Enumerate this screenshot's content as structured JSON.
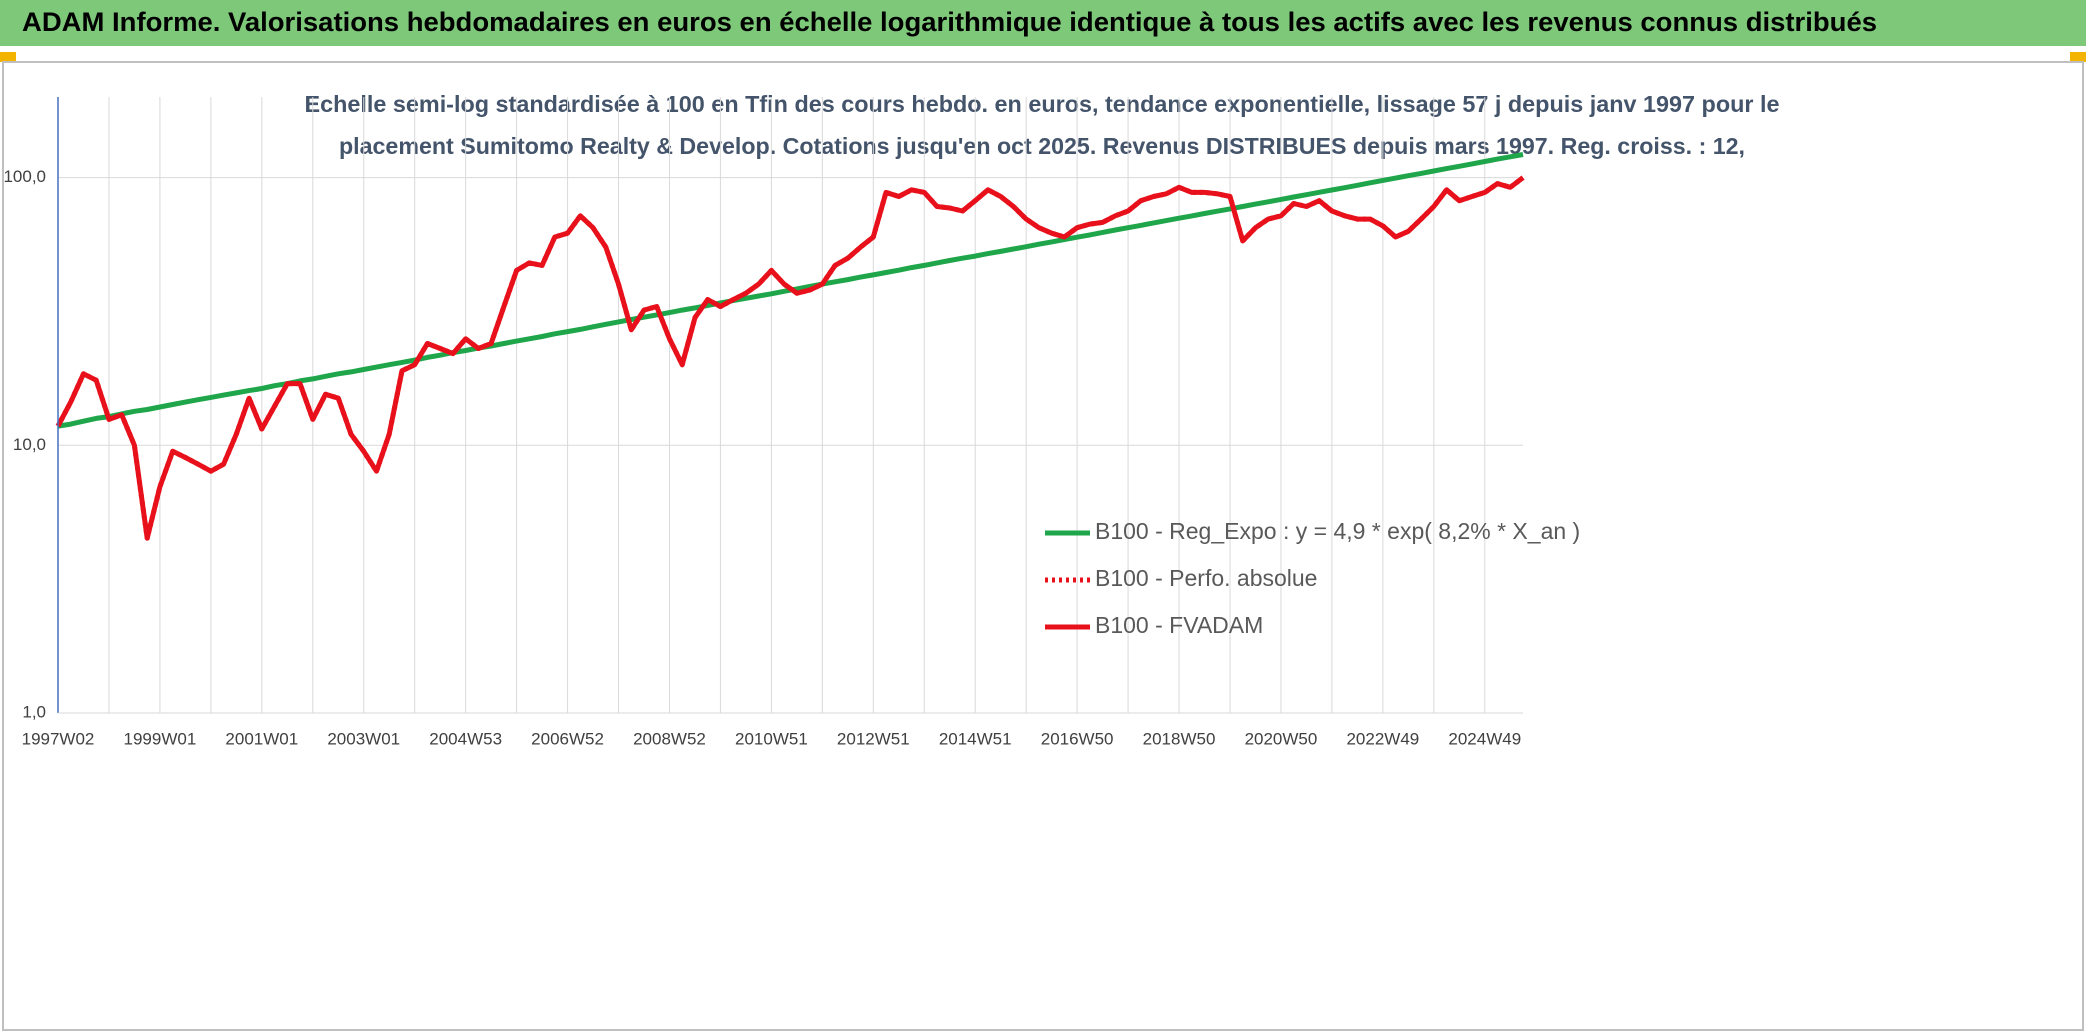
{
  "chart_data": {
    "type": "line",
    "title": "ADAM Informe. Valorisations hebdomadaires en euros en échelle logarithmique identique à tous les actifs avec les revenus connus distribués",
    "subtitle": [
      "Echelle semi-log standardisée à 100 en Tfin des cours hebdo. en euros, tendance exponentielle, lissage 57 j depuis janv 1997 pour le",
      "placement Sumitomo Realty & Develop. Cotations jusqu'en oct 2025. Revenus DISTRIBUES depuis mars 1997. Reg. croiss. : 12,"
    ],
    "categories": [
      "1997W02",
      null,
      null,
      null,
      null,
      null,
      null,
      null,
      "1999W01",
      null,
      null,
      null,
      null,
      null,
      null,
      null,
      "2001W01",
      null,
      null,
      null,
      null,
      null,
      null,
      null,
      "2003W01",
      null,
      null,
      null,
      null,
      null,
      null,
      null,
      "2004W53",
      null,
      null,
      null,
      null,
      null,
      null,
      null,
      "2006W52",
      null,
      null,
      null,
      null,
      null,
      null,
      null,
      "2008W52",
      null,
      null,
      null,
      null,
      null,
      null,
      null,
      "2010W51",
      null,
      null,
      null,
      null,
      null,
      null,
      null,
      "2012W51",
      null,
      null,
      null,
      null,
      null,
      null,
      null,
      "2014W51",
      null,
      null,
      null,
      null,
      null,
      null,
      null,
      "2016W50",
      null,
      null,
      null,
      null,
      null,
      null,
      null,
      "2018W50",
      null,
      null,
      null,
      null,
      null,
      null,
      null,
      "2020W50",
      null,
      null,
      null,
      null,
      null,
      null,
      null,
      "2022W49",
      null,
      null,
      null,
      null,
      null,
      null,
      null,
      "2024W49",
      null,
      null,
      null
    ],
    "log_scale": true,
    "ylim": [
      1,
      200
    ],
    "yticks": [
      {
        "value": 1,
        "label": "1,0"
      },
      {
        "value": 10,
        "label": "10,0"
      },
      {
        "value": 100,
        "label": "100,0"
      }
    ],
    "grid": true,
    "legend_position": "right",
    "series": [
      {
        "name": "B100 - Reg_Expo : y = 4,9 * exp( 8,2% *  X_an )",
        "color": "#1fa64a",
        "style": "solid",
        "values": [
          11.8,
          12.0,
          12.3,
          12.6,
          12.8,
          13.1,
          13.4,
          13.6,
          13.9,
          14.2,
          14.5,
          14.8,
          15.1,
          15.4,
          15.7,
          16.0,
          16.3,
          16.7,
          17.0,
          17.4,
          17.7,
          18.1,
          18.5,
          18.8,
          19.2,
          19.6,
          20.0,
          20.4,
          20.8,
          21.3,
          21.7,
          22.2,
          22.6,
          23.1,
          23.5,
          24.0,
          24.5,
          25.0,
          25.5,
          26.1,
          26.6,
          27.1,
          27.7,
          28.3,
          28.9,
          29.5,
          30.1,
          30.7,
          31.3,
          32.0,
          32.6,
          33.3,
          34.0,
          34.7,
          35.4,
          36.1,
          36.8,
          37.6,
          38.4,
          39.2,
          40.0,
          40.8,
          41.6,
          42.5,
          43.3,
          44.2,
          45.1,
          46.1,
          47.0,
          48.0,
          49.0,
          50.0,
          50.9,
          52.0,
          53.0,
          54.1,
          55.2,
          56.4,
          57.5,
          58.7,
          59.9,
          61.1,
          62.4,
          63.7,
          65.0,
          66.3,
          67.7,
          69.1,
          70.5,
          71.9,
          73.4,
          74.9,
          76.4,
          78.0,
          79.6,
          81.2,
          82.9,
          84.6,
          86.3,
          88.1,
          89.9,
          91.7,
          93.6,
          95.6,
          97.6,
          99.6,
          101.6,
          103.7,
          105.8,
          108.0,
          110.2,
          112.5,
          114.8,
          117.2,
          119.6,
          122.0
        ]
      },
      {
        "name": "B100 - Perfo. absolue",
        "color": "#e8111b",
        "style": "dotted",
        "values": [
          11.8,
          14.5,
          18.5,
          17.5,
          12.5,
          13,
          10,
          4.5,
          7,
          9.5,
          9,
          8.5,
          8,
          8.5,
          11,
          15,
          11.5,
          14,
          17,
          17,
          12.5,
          15.5,
          15,
          11,
          9.5,
          8,
          11,
          19,
          20,
          24,
          23,
          22,
          25,
          23,
          24,
          33,
          45,
          48,
          47,
          60,
          62,
          72,
          65,
          55,
          40,
          27,
          32,
          33,
          25,
          20,
          30,
          35,
          33,
          35,
          37,
          40,
          45,
          40,
          37,
          38,
          40,
          47,
          50,
          55,
          60,
          88,
          85,
          90,
          88,
          78,
          77,
          75,
          82,
          90,
          85,
          78,
          70,
          65,
          62,
          60,
          65,
          67,
          68,
          72,
          75,
          82,
          85,
          87,
          92,
          88,
          88,
          87,
          85,
          58,
          65,
          70,
          72,
          80,
          78,
          82,
          75,
          72,
          70,
          70,
          66,
          60,
          63,
          70,
          78,
          90,
          82,
          85,
          88,
          95,
          92,
          100
        ]
      },
      {
        "name": "B100 - FVADAM",
        "color": "#e8111b",
        "style": "solid",
        "values": [
          11.8,
          14.5,
          18.5,
          17.5,
          12.5,
          13,
          10,
          4.5,
          7,
          9.5,
          9,
          8.5,
          8,
          8.5,
          11,
          15,
          11.5,
          14,
          17,
          17,
          12.5,
          15.5,
          15,
          11,
          9.5,
          8,
          11,
          19,
          20,
          24,
          23,
          22,
          25,
          23,
          24,
          33,
          45,
          48,
          47,
          60,
          62,
          72,
          65,
          55,
          40,
          27,
          32,
          33,
          25,
          20,
          30,
          35,
          33,
          35,
          37,
          40,
          45,
          40,
          37,
          38,
          40,
          47,
          50,
          55,
          60,
          88,
          85,
          90,
          88,
          78,
          77,
          75,
          82,
          90,
          85,
          78,
          70,
          65,
          62,
          60,
          65,
          67,
          68,
          72,
          75,
          82,
          85,
          87,
          92,
          88,
          88,
          87,
          85,
          58,
          65,
          70,
          72,
          80,
          78,
          82,
          75,
          72,
          70,
          70,
          66,
          60,
          63,
          70,
          78,
          90,
          82,
          85,
          88,
          95,
          92,
          100
        ]
      }
    ]
  }
}
